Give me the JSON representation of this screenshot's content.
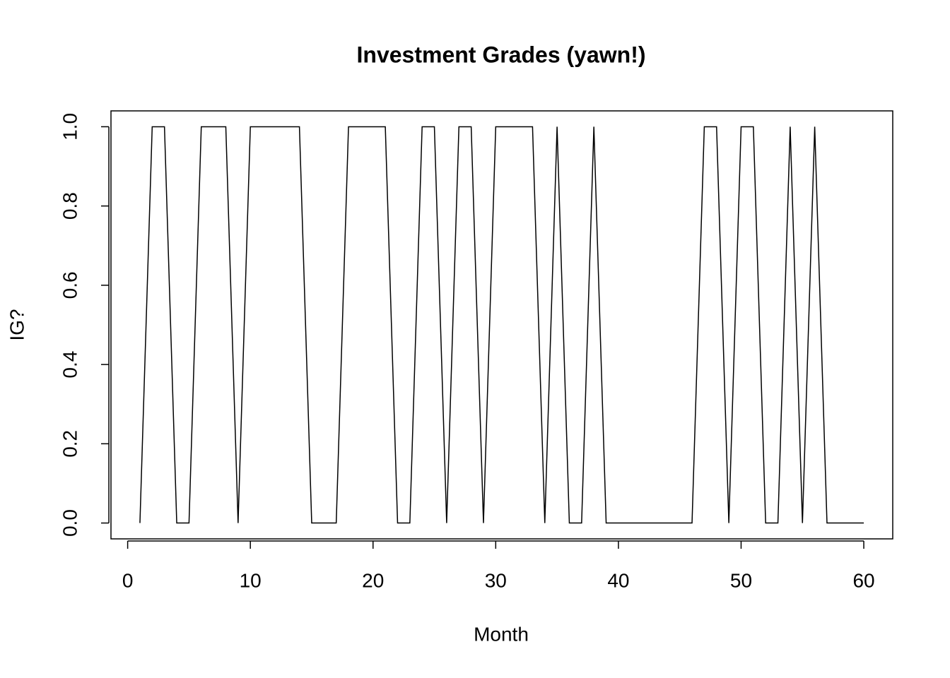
{
  "chart_data": {
    "type": "line",
    "title": "Investment Grades (yawn!)",
    "x_label": "Month",
    "y_label": "IG?",
    "x": [
      1,
      2,
      3,
      4,
      5,
      6,
      7,
      8,
      9,
      10,
      11,
      12,
      13,
      14,
      15,
      16,
      17,
      18,
      19,
      20,
      21,
      22,
      23,
      24,
      25,
      26,
      27,
      28,
      29,
      30,
      31,
      32,
      33,
      34,
      35,
      36,
      37,
      38,
      39,
      40,
      41,
      42,
      43,
      44,
      45,
      46,
      47,
      48,
      49,
      50,
      51,
      52,
      53,
      54,
      55,
      56,
      57,
      58,
      59,
      60
    ],
    "values": [
      0,
      1,
      1,
      0,
      0,
      1,
      1,
      1,
      0,
      1,
      1,
      1,
      1,
      1,
      0,
      0,
      0,
      1,
      1,
      1,
      1,
      0,
      0,
      1,
      1,
      0,
      1,
      1,
      0,
      1,
      1,
      1,
      1,
      0,
      1,
      0,
      0,
      1,
      0,
      0,
      0,
      0,
      0,
      0,
      0,
      0,
      1,
      1,
      0,
      1,
      1,
      0,
      0,
      1,
      0,
      1,
      0,
      0,
      0,
      0
    ],
    "color": "#000000",
    "xlim": [
      -1.36,
      62.36
    ],
    "ylim": [
      -0.04,
      1.04
    ],
    "xticks": [
      0,
      10,
      20,
      30,
      40,
      50,
      60
    ],
    "yticks": [
      {
        "value": 0,
        "label": "0.0"
      },
      {
        "value": 0.2,
        "label": "0.2"
      },
      {
        "value": 0.4,
        "label": "0.4"
      },
      {
        "value": 0.6,
        "label": "0.6"
      },
      {
        "value": 0.8,
        "label": "0.8"
      },
      {
        "value": 1,
        "label": "1.0"
      }
    ],
    "grid": false
  }
}
